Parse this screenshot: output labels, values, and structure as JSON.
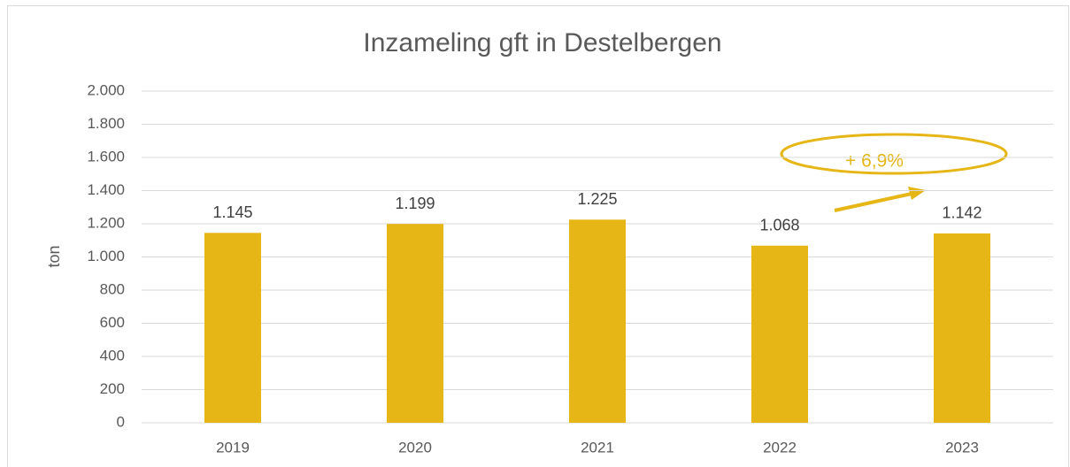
{
  "chart_data": {
    "type": "bar",
    "title": "Inzameling gft in Destelbergen",
    "y_label": "ton",
    "categories": [
      "2019",
      "2020",
      "2021",
      "2022",
      "2023"
    ],
    "values": [
      1145,
      1199,
      1225,
      1068,
      1142
    ],
    "value_labels": [
      "1.145",
      "1.199",
      "1.225",
      "1.068",
      "1.142"
    ],
    "color": "#e6b616",
    "ylim": [
      0,
      2000
    ],
    "yticks": [
      0,
      200,
      400,
      600,
      800,
      {
        "value": 1000,
        "label": "1.000"
      },
      {
        "value": 1200,
        "label": "1.200"
      },
      {
        "value": 1400,
        "label": "1.400"
      },
      {
        "value": 1600,
        "label": "1.600"
      },
      {
        "value": 1800,
        "label": "1.800"
      },
      {
        "value": 2000,
        "label": "2.000"
      }
    ],
    "grid": true,
    "annotation": "+ 6,9%"
  }
}
